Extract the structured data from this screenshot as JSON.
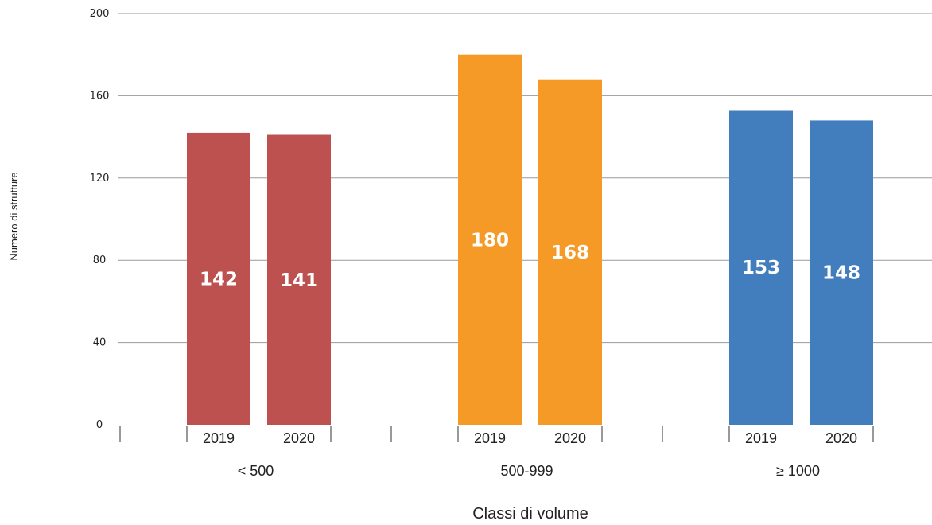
{
  "chart_data": {
    "type": "bar",
    "ylabel": "Numero di strutture",
    "xlabel": "Classi di volume",
    "ylim": [
      0,
      200
    ],
    "yticks": [
      0,
      40,
      80,
      120,
      160,
      200
    ],
    "grid": true,
    "categories": [
      "< 500",
      "500-999",
      "≥ 1000"
    ],
    "groups": [
      {
        "category": "< 500",
        "color": "#bc5150",
        "bars": [
          {
            "label": "2019",
            "value": 142
          },
          {
            "label": "2020",
            "value": 141
          }
        ]
      },
      {
        "category": "500-999",
        "color": "#f59a27",
        "bars": [
          {
            "label": "2019",
            "value": 180
          },
          {
            "label": "2020",
            "value": 168
          }
        ]
      },
      {
        "category": "≥ 1000",
        "color": "#427ebd",
        "bars": [
          {
            "label": "2019",
            "value": 153
          },
          {
            "label": "2020",
            "value": 148
          }
        ]
      }
    ]
  }
}
